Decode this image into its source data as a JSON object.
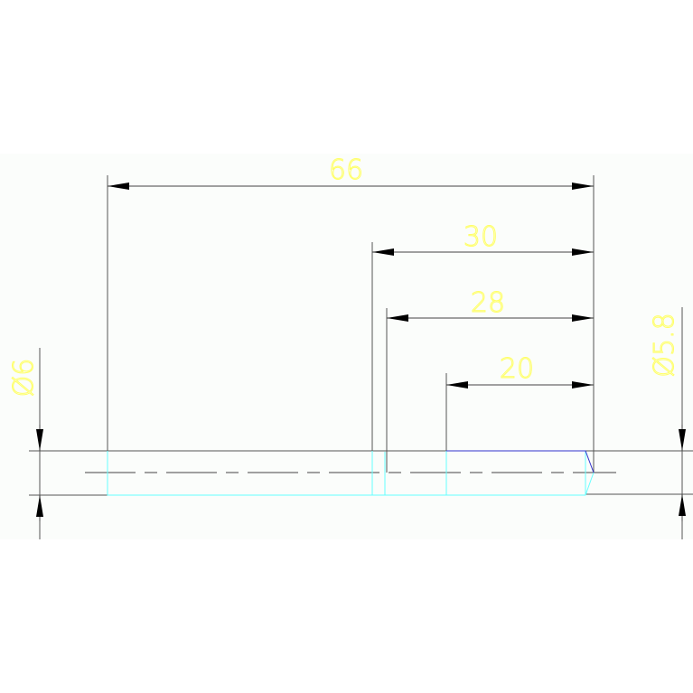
{
  "drawing": {
    "colors": {
      "background": "#fbfdfb",
      "dimension_text": "#ffff66",
      "dimension_line": "#444444",
      "part_outline_hidden": "#66ffff",
      "part_outline_blue": "#3333cc"
    },
    "dimensions": {
      "d66": "66",
      "d30": "30",
      "d28": "28",
      "d20": "20",
      "dia_left": "Ø6",
      "dia_right": "Ø5.8"
    }
  }
}
